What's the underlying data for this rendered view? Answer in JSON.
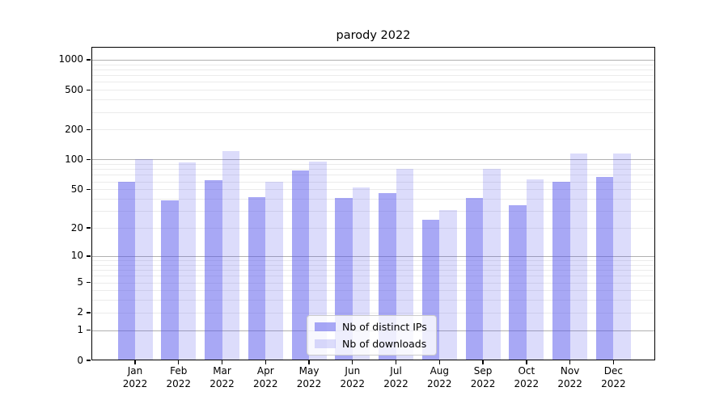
{
  "chart_data": {
    "type": "bar",
    "title": "parody 2022",
    "yscale": "log1p",
    "grid": true,
    "legend_position": "lower center",
    "ylim": [
      0,
      1345
    ],
    "yticks": [
      1000,
      500,
      200,
      100,
      50,
      20,
      10,
      5,
      2,
      1,
      0
    ],
    "categories": [
      "Jan\n2022",
      "Feb\n2022",
      "Mar\n2022",
      "Apr\n2022",
      "May\n2022",
      "Jun\n2022",
      "Jul\n2022",
      "Aug\n2022",
      "Sep\n2022",
      "Oct\n2022",
      "Nov\n2022",
      "Dec\n2022"
    ],
    "series": [
      {
        "name": "Nb of distinct IPs",
        "color": "rgba(82,82,235,0.5)",
        "values": [
          58,
          38,
          61,
          41,
          76,
          40,
          45,
          24,
          40,
          34,
          58,
          65
        ]
      },
      {
        "name": "Nb of downloads",
        "color": "rgba(82,82,235,0.2)",
        "values": [
          99,
          92,
          120,
          58,
          94,
          51,
          79,
          30,
          79,
          62,
          113,
          113
        ]
      }
    ],
    "colors": {
      "grid_major": "#b0b0b0",
      "grid_minor": "#ebebeb",
      "spine": "#000000",
      "background": "#ffffff"
    }
  }
}
